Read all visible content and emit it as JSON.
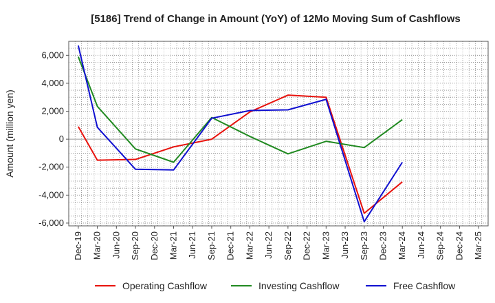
{
  "chart_data": {
    "type": "line",
    "title": "[5186]  Trend of Change in Amount (YoY) of 12Mo Moving Sum of Cashflows",
    "xlabel": "",
    "ylabel": "Amount (million yen)",
    "ylim": [
      -6200,
      7000
    ],
    "yticks": [
      6000,
      4000,
      2000,
      0,
      -2000,
      -4000,
      -6000
    ],
    "ytick_labels": [
      "6,000",
      "4,000",
      "2,000",
      "0",
      "-2,000",
      "-4,000",
      "-6,000"
    ],
    "categories": [
      "Dec-19",
      "Mar-20",
      "Jun-20",
      "Sep-20",
      "Dec-20",
      "Mar-21",
      "Jun-21",
      "Sep-21",
      "Dec-21",
      "Mar-22",
      "Jun-22",
      "Sep-22",
      "Dec-22",
      "Mar-23",
      "Jun-23",
      "Sep-23",
      "Dec-23",
      "Mar-24",
      "Jun-24",
      "Sep-24",
      "Dec-24",
      "Mar-25"
    ],
    "grid": true,
    "legend_position": "bottom",
    "series": [
      {
        "name": "Operating Cashflow",
        "color": "#e8120c",
        "values": [
          900,
          -1500,
          null,
          -1450,
          null,
          -550,
          null,
          0,
          null,
          1950,
          null,
          3150,
          null,
          3000,
          null,
          -5300,
          null,
          -3050,
          null,
          null,
          null,
          null
        ]
      },
      {
        "name": "Investing Cashflow",
        "color": "#218a21",
        "values": [
          5900,
          2350,
          null,
          -700,
          null,
          -1650,
          null,
          1550,
          null,
          200,
          null,
          -1050,
          null,
          -150,
          null,
          -600,
          null,
          1400,
          null,
          null,
          null,
          null
        ]
      },
      {
        "name": "Free Cashflow",
        "color": "#1010d0",
        "values": [
          6700,
          850,
          null,
          -2150,
          null,
          -2200,
          null,
          1500,
          null,
          2050,
          null,
          2100,
          null,
          2850,
          null,
          -5900,
          null,
          -1650,
          null,
          null,
          null,
          null
        ]
      }
    ]
  }
}
